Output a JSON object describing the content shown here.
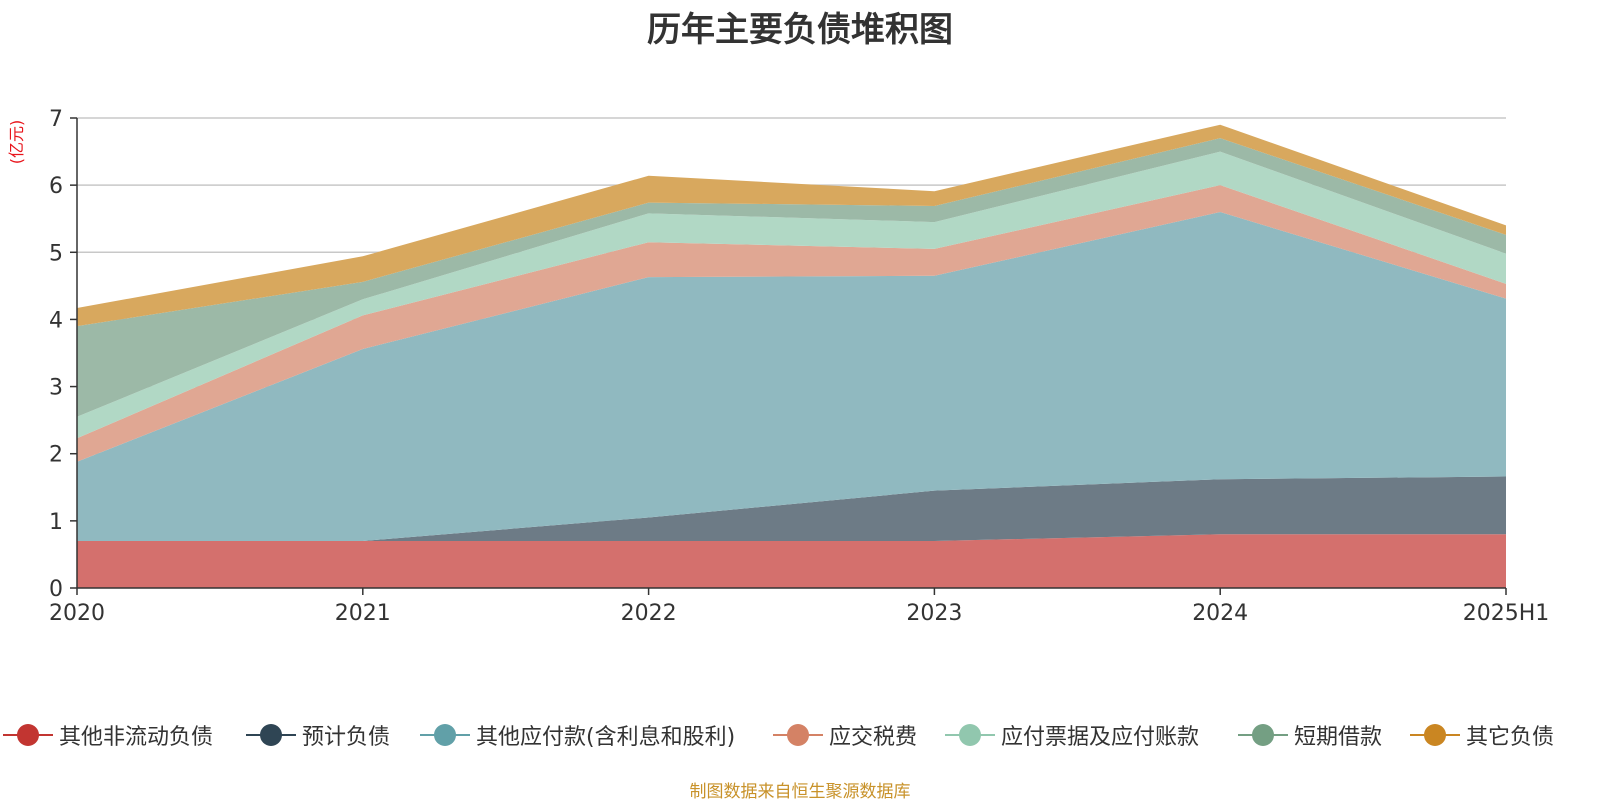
{
  "chart_data": {
    "type": "area",
    "stacked": true,
    "title": "历年主要负债堆积图",
    "ylabel": "(亿元)",
    "ylim": [
      0,
      7
    ],
    "yticks": [
      0,
      1,
      2,
      3,
      4,
      5,
      6,
      7
    ],
    "categories": [
      "2020",
      "2021",
      "2022",
      "2023",
      "2024",
      "2025H1"
    ],
    "grid": true,
    "legend_position": "bottom",
    "series": [
      {
        "name": "其他非流动负债",
        "color": "#c23531",
        "fill": "#d4706d",
        "values": [
          0.7,
          0.7,
          0.7,
          0.7,
          0.8,
          0.8
        ]
      },
      {
        "name": "预计负债",
        "color": "#2f4554",
        "fill": "#6d7b86",
        "values": [
          0.0,
          0.0,
          0.35,
          0.75,
          0.82,
          0.86
        ]
      },
      {
        "name": "其他应付款(含利息和股利)",
        "color": "#61a0a8",
        "fill": "#90b9c0",
        "values": [
          1.18,
          2.86,
          3.58,
          3.2,
          3.98,
          2.65
        ]
      },
      {
        "name": "应交税费",
        "color": "#d48265",
        "fill": "#e0a793",
        "values": [
          0.35,
          0.5,
          0.52,
          0.4,
          0.4,
          0.22
        ]
      },
      {
        "name": "应付票据及应付账款",
        "color": "#91c7ae",
        "fill": "#b1d8c5",
        "values": [
          0.32,
          0.24,
          0.43,
          0.4,
          0.5,
          0.45
        ]
      },
      {
        "name": "短期借款",
        "color": "#749f83",
        "fill": "#9cb9a7",
        "values": [
          1.35,
          0.26,
          0.16,
          0.24,
          0.2,
          0.28
        ]
      },
      {
        "name": "其它负债",
        "color": "#ca8622",
        "fill": "#d8a85e",
        "values": [
          0.27,
          0.38,
          0.4,
          0.22,
          0.2,
          0.14
        ]
      }
    ]
  },
  "source_note": "制图数据来自恒生聚源数据库"
}
